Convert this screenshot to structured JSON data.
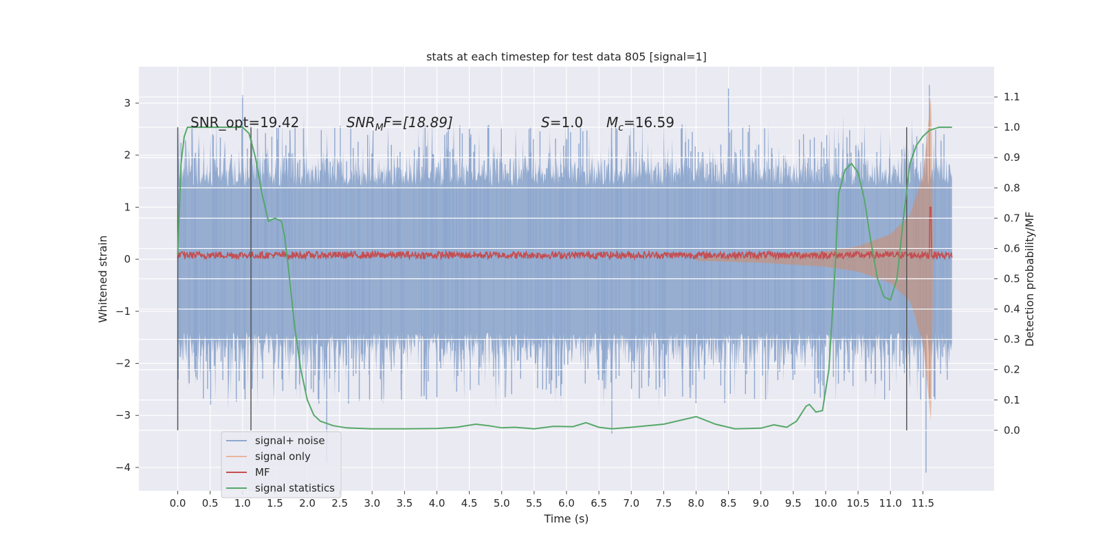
{
  "chart_data": {
    "type": "line",
    "title": "stats at each timestep for test data 805 [signal=1]",
    "xlabel": "Time (s)",
    "ylabel": "Whitened strain",
    "ylabel_right": "Detection probability/MF",
    "xlim": [
      -0.6,
      12.6
    ],
    "ylim": [
      -4.45,
      3.7
    ],
    "ylim_right": [
      -0.2,
      1.2
    ],
    "xticks": [
      "0.0",
      "0.5",
      "1.0",
      "1.5",
      "2.0",
      "2.5",
      "3.0",
      "3.5",
      "4.0",
      "4.5",
      "5.0",
      "5.5",
      "6.0",
      "6.5",
      "7.0",
      "7.5",
      "8.0",
      "8.5",
      "9.0",
      "9.5",
      "10.0",
      "10.5",
      "11.0",
      "11.5"
    ],
    "yticks": [
      "3",
      "2",
      "1",
      "0",
      "−1",
      "−2",
      "−3",
      "−4"
    ],
    "yticks_right": [
      "1.1",
      "1.0",
      "0.9",
      "0.8",
      "0.7",
      "0.6",
      "0.5",
      "0.4",
      "0.3",
      "0.2",
      "0.1",
      "0.0"
    ],
    "annotations": {
      "snr_opt": "SNR_opt=19.42",
      "snr_mf_base": "SNR",
      "snr_mf_sub": "M",
      "snr_mf_rest": "F=[18.89]",
      "s_label": "S",
      "s_rest": "=1.0",
      "mc_base": "M",
      "mc_sub": "c",
      "mc_rest": "=16.59"
    },
    "vlines_x": [
      0.0,
      1.13,
      11.25
    ],
    "noise_envelope": {
      "x_range": [
        0.0,
        11.95
      ],
      "typical_upper": 1.4,
      "typical_lower": -1.4,
      "peak_upper": 3.35,
      "peak_lower": -4.1
    },
    "series": [
      {
        "name": "signal+ noise",
        "color": "#4c72b0",
        "axis": "left",
        "note_peaks": [
          [
            1.0,
            3.15
          ],
          [
            8.5,
            3.28
          ],
          [
            11.6,
            3.35
          ],
          [
            2.3,
            -3.9
          ],
          [
            11.55,
            -4.1
          ],
          [
            6.7,
            -3.35
          ]
        ]
      },
      {
        "name": "signal only",
        "color": "#dd8452",
        "axis": "left",
        "envelope": [
          [
            8.0,
            0.03
          ],
          [
            9.0,
            0.07
          ],
          [
            10.0,
            0.15
          ],
          [
            10.5,
            0.25
          ],
          [
            11.0,
            0.48
          ],
          [
            11.3,
            0.85
          ],
          [
            11.5,
            1.6
          ],
          [
            11.6,
            2.8
          ],
          [
            11.63,
            3.2
          ],
          [
            11.66,
            0.0
          ]
        ]
      },
      {
        "name": "MF",
        "color": "#c44e52",
        "axis": "left",
        "level": 0.08,
        "spike": [
          11.62,
          1.0
        ]
      },
      {
        "name": "signal statistics",
        "color": "#55a868",
        "axis": "right",
        "x": [
          0.0,
          0.05,
          0.1,
          0.15,
          0.25,
          0.5,
          0.8,
          1.0,
          1.1,
          1.2,
          1.3,
          1.4,
          1.5,
          1.6,
          1.65,
          1.7,
          1.8,
          1.9,
          2.0,
          2.1,
          2.2,
          2.4,
          2.6,
          3.0,
          3.5,
          4.0,
          4.3,
          4.6,
          4.8,
          5.0,
          5.2,
          5.5,
          5.8,
          6.1,
          6.3,
          6.5,
          6.7,
          7.0,
          7.5,
          8.0,
          8.3,
          8.6,
          9.0,
          9.2,
          9.4,
          9.55,
          9.7,
          9.75,
          9.85,
          9.95,
          10.05,
          10.15,
          10.2,
          10.3,
          10.4,
          10.5,
          10.6,
          10.7,
          10.8,
          10.9,
          11.0,
          11.1,
          11.2,
          11.3,
          11.4,
          11.5,
          11.6,
          11.75,
          11.95
        ],
        "y": [
          0.58,
          0.88,
          0.97,
          1.0,
          1.0,
          1.0,
          1.0,
          1.0,
          0.98,
          0.9,
          0.78,
          0.69,
          0.7,
          0.69,
          0.64,
          0.55,
          0.35,
          0.2,
          0.1,
          0.05,
          0.03,
          0.015,
          0.008,
          0.005,
          0.005,
          0.006,
          0.01,
          0.02,
          0.015,
          0.008,
          0.01,
          0.005,
          0.013,
          0.012,
          0.025,
          0.01,
          0.005,
          0.01,
          0.02,
          0.045,
          0.02,
          0.005,
          0.007,
          0.018,
          0.01,
          0.03,
          0.08,
          0.085,
          0.06,
          0.065,
          0.2,
          0.55,
          0.78,
          0.86,
          0.88,
          0.85,
          0.76,
          0.62,
          0.5,
          0.44,
          0.43,
          0.5,
          0.7,
          0.88,
          0.94,
          0.97,
          0.99,
          1.0,
          1.0
        ]
      }
    ],
    "legend_position": "lower-left",
    "grid": true
  }
}
